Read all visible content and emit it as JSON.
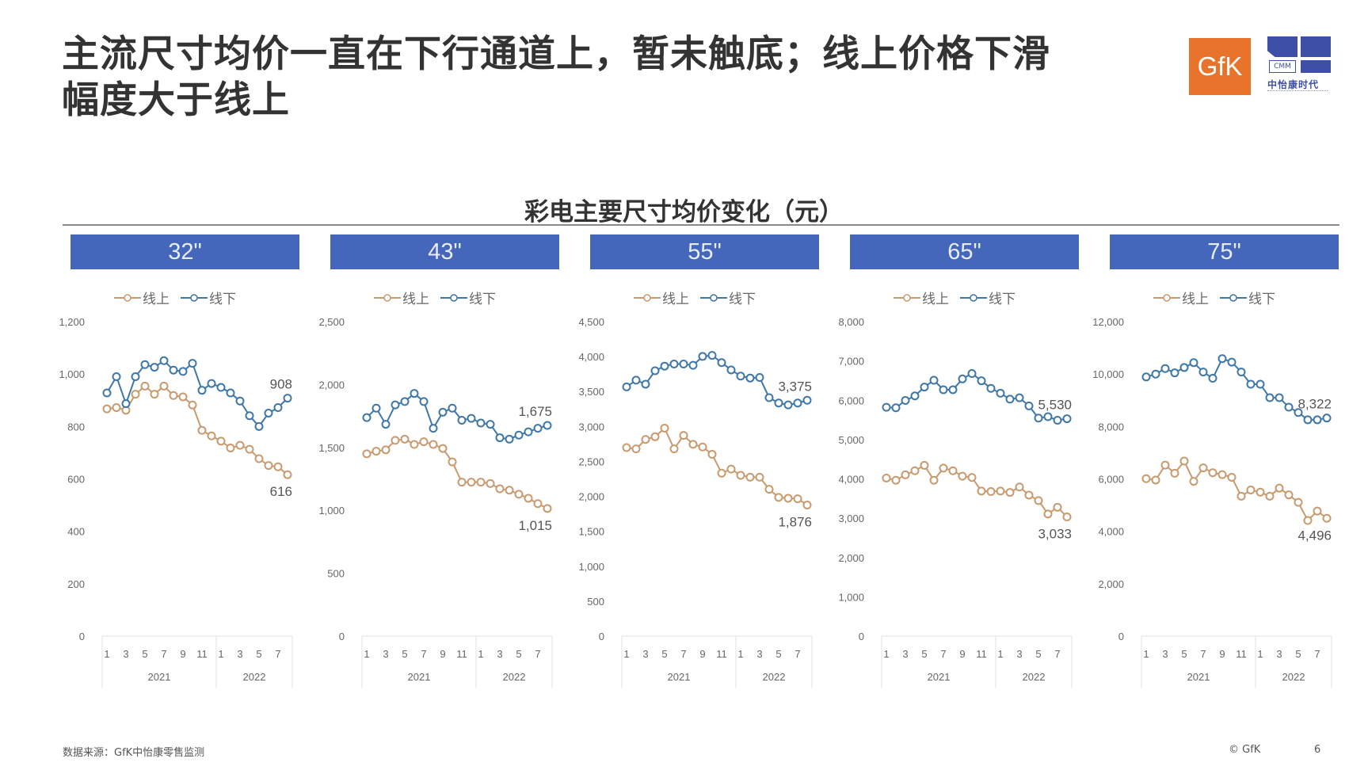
{
  "header": {
    "title_line1": "主流尺寸均价一直在下行通道上，暂未触底；线上价格下滑",
    "title_line2": "幅度大于线上",
    "logo_gfk": "GfK",
    "logo_cmm_text": "CMM",
    "logo_cmm_cn": "中怡康时代"
  },
  "chart_section_title": "彩电主要尺寸均价变化（元）",
  "legend": {
    "online": "线上",
    "offline": "线下"
  },
  "colors": {
    "header_bar": "#4466bb",
    "online": "#c89a6e",
    "offline": "#3e77a8"
  },
  "x_axis": {
    "month_ticks": [
      "1",
      "3",
      "5",
      "7",
      "9",
      "11",
      "1",
      "3",
      "5",
      "7"
    ],
    "years": [
      "2021",
      "2022"
    ]
  },
  "panels": [
    {
      "label": "32\"",
      "yticks": [
        "1,200",
        "1,000",
        "800",
        "600",
        "400",
        "200",
        "0"
      ],
      "end_offline_label": "908",
      "end_online_label": "616"
    },
    {
      "label": "43\"",
      "yticks": [
        "2,500",
        "2,000",
        "1,500",
        "1,000",
        "500",
        "0"
      ],
      "end_offline_label": "1,675",
      "end_online_label": "1,015"
    },
    {
      "label": "55\"",
      "yticks": [
        "4,500",
        "4,000",
        "3,500",
        "3,000",
        "2,500",
        "2,000",
        "1,500",
        "1,000",
        "500",
        "0"
      ],
      "end_offline_label": "3,375",
      "end_online_label": "1,876"
    },
    {
      "label": "65\"",
      "yticks": [
        "8,000",
        "7,000",
        "6,000",
        "5,000",
        "4,000",
        "3,000",
        "2,000",
        "1,000",
        "0"
      ],
      "end_offline_label": "5,530",
      "end_online_label": "3,033"
    },
    {
      "label": "75\"",
      "yticks": [
        "12,000",
        "10,000",
        "8,000",
        "6,000",
        "4,000",
        "2,000",
        "0"
      ],
      "end_offline_label": "8,322",
      "end_online_label": "4,496"
    }
  ],
  "footer": {
    "source": "数据来源：GfK中怡康零售监测",
    "copyright": "© GfK",
    "page": "6"
  },
  "chart_data": [
    {
      "type": "line",
      "title": "32\"",
      "categories": [
        "2021-1",
        "2021-2",
        "2021-3",
        "2021-4",
        "2021-5",
        "2021-6",
        "2021-7",
        "2021-8",
        "2021-9",
        "2021-10",
        "2021-11",
        "2021-12",
        "2022-1",
        "2022-2",
        "2022-3",
        "2022-4",
        "2022-5",
        "2022-6",
        "2022-7",
        "2022-8"
      ],
      "series": [
        {
          "name": "线上",
          "values": [
            867,
            872,
            862,
            923,
            954,
            923,
            954,
            918,
            913,
            882,
            785,
            764,
            744,
            718,
            728,
            713,
            677,
            651,
            646,
            616
          ]
        },
        {
          "name": "线下",
          "values": [
            928,
            990,
            887,
            990,
            1036,
            1026,
            1051,
            1015,
            1010,
            1041,
            938,
            964,
            949,
            928,
            897,
            841,
            800,
            851,
            872,
            908
          ]
        }
      ],
      "xlabel": "",
      "ylabel": "元",
      "ylim": [
        0,
        1200
      ],
      "grid": false,
      "legend_position": "top"
    },
    {
      "type": "line",
      "title": "43\"",
      "categories": [
        "2021-1",
        "2021-2",
        "2021-3",
        "2021-4",
        "2021-5",
        "2021-6",
        "2021-7",
        "2021-8",
        "2021-9",
        "2021-10",
        "2021-11",
        "2021-12",
        "2022-1",
        "2022-2",
        "2022-3",
        "2022-4",
        "2022-5",
        "2022-6",
        "2022-7",
        "2022-8"
      ],
      "series": [
        {
          "name": "线上",
          "values": [
            1449,
            1470,
            1481,
            1556,
            1566,
            1524,
            1545,
            1524,
            1492,
            1385,
            1224,
            1224,
            1224,
            1213,
            1171,
            1160,
            1128,
            1096,
            1053,
            1015
          ]
        },
        {
          "name": "线下",
          "values": [
            1737,
            1812,
            1684,
            1838,
            1865,
            1929,
            1865,
            1652,
            1780,
            1812,
            1716,
            1731,
            1694,
            1684,
            1577,
            1566,
            1598,
            1624,
            1652,
            1675
          ]
        }
      ],
      "xlabel": "",
      "ylabel": "元",
      "ylim": [
        0,
        2500
      ],
      "grid": false,
      "legend_position": "top"
    },
    {
      "type": "line",
      "title": "55\"",
      "categories": [
        "2021-1",
        "2021-2",
        "2021-3",
        "2021-4",
        "2021-5",
        "2021-6",
        "2021-7",
        "2021-8",
        "2021-9",
        "2021-10",
        "2021-11",
        "2021-12",
        "2022-1",
        "2022-2",
        "2022-3",
        "2022-4",
        "2022-5",
        "2022-6",
        "2022-7",
        "2022-8"
      ],
      "series": [
        {
          "name": "线上",
          "values": [
            2698,
            2679,
            2814,
            2853,
            2976,
            2679,
            2872,
            2744,
            2706,
            2602,
            2332,
            2390,
            2301,
            2274,
            2274,
            2101,
            1985,
            1973,
            1965,
            1876
          ]
        },
        {
          "name": "线下",
          "values": [
            3566,
            3663,
            3605,
            3797,
            3863,
            3894,
            3894,
            3875,
            4002,
            4017,
            3913,
            3809,
            3721,
            3693,
            3701,
            3412,
            3335,
            3308,
            3335,
            3375
          ]
        }
      ],
      "xlabel": "",
      "ylabel": "元",
      "ylim": [
        0,
        4500
      ],
      "grid": false,
      "legend_position": "top"
    },
    {
      "type": "line",
      "title": "65\"",
      "categories": [
        "2021-1",
        "2021-2",
        "2021-3",
        "2021-4",
        "2021-5",
        "2021-6",
        "2021-7",
        "2021-8",
        "2021-9",
        "2021-10",
        "2021-11",
        "2021-12",
        "2022-1",
        "2022-2",
        "2022-3",
        "2022-4",
        "2022-5",
        "2022-6",
        "2022-7",
        "2022-8"
      ],
      "series": [
        {
          "name": "线上",
          "values": [
            4021,
            3965,
            4103,
            4206,
            4344,
            3965,
            4274,
            4206,
            4068,
            4035,
            3691,
            3677,
            3691,
            3656,
            3794,
            3588,
            3449,
            3107,
            3278,
            3033
          ]
        },
        {
          "name": "线下",
          "values": [
            5821,
            5808,
            5994,
            6110,
            6336,
            6509,
            6268,
            6268,
            6543,
            6680,
            6495,
            6303,
            6179,
            6027,
            6062,
            5856,
            5546,
            5581,
            5491,
            5530
          ]
        }
      ],
      "xlabel": "",
      "ylabel": "元",
      "ylim": [
        0,
        8000
      ],
      "grid": false,
      "legend_position": "top"
    },
    {
      "type": "line",
      "title": "75\"",
      "categories": [
        "2021-1",
        "2021-2",
        "2021-3",
        "2021-4",
        "2021-5",
        "2021-6",
        "2021-7",
        "2021-8",
        "2021-9",
        "2021-10",
        "2021-11",
        "2021-12",
        "2022-1",
        "2022-2",
        "2022-3",
        "2022-4",
        "2022-5",
        "2022-6",
        "2022-7",
        "2022-8"
      ],
      "series": [
        {
          "name": "线上",
          "values": [
            6008,
            5956,
            6524,
            6215,
            6679,
            5907,
            6420,
            6234,
            6163,
            6061,
            5338,
            5576,
            5493,
            5338,
            5647,
            5390,
            5104,
            4412,
            4773,
            4496
          ]
        },
        {
          "name": "线下",
          "values": [
            9890,
            9998,
            10209,
            10045,
            10249,
            10434,
            10076,
            9838,
            10588,
            10456,
            10076,
            9613,
            9613,
            9097,
            9097,
            8736,
            8532,
            8254,
            8254,
            8322
          ]
        }
      ],
      "xlabel": "",
      "ylabel": "元",
      "ylim": [
        0,
        12000
      ],
      "grid": false,
      "legend_position": "top"
    }
  ]
}
